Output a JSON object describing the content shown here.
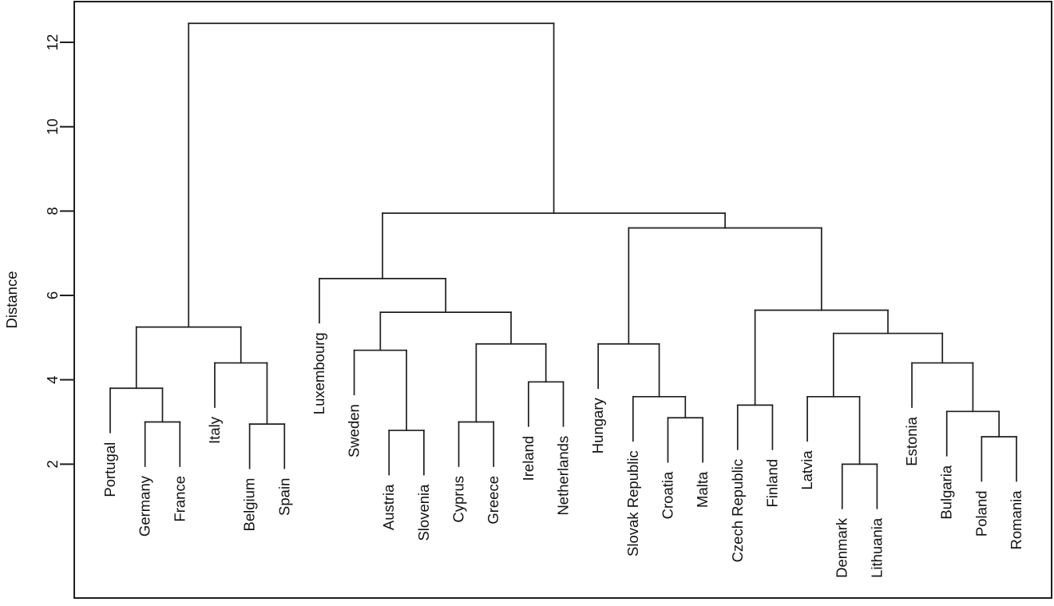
{
  "chart_data": {
    "type": "dendrogram",
    "title": "",
    "xlabel": "",
    "ylabel": "Distance",
    "y_axis": {
      "ticks": [
        2,
        4,
        6,
        8,
        10,
        12
      ],
      "tick_labels": [
        "2",
        "4",
        "6",
        "8",
        "10",
        "12"
      ],
      "orientation": "labels rotated 90 degrees, reading bottom to top"
    },
    "ylim": [
      -1.17,
      12.97
    ],
    "grid": false,
    "legend": "none",
    "leaf_label_rotation": "vertical, reading bottom to top, hanging below leaf stems",
    "hang": 1.05,
    "leaves": [
      "Portugal",
      "Germany",
      "France",
      "Italy",
      "Belgium",
      "Spain",
      "Luxembourg",
      "Sweden",
      "Austria",
      "Slovenia",
      "Cyprus",
      "Greece",
      "Ireland",
      "Netherlands",
      "Hungary",
      "Slovak Republic",
      "Croatia",
      "Malta",
      "Czech Republic",
      "Finland",
      "Latvia",
      "Denmark",
      "Lithuania",
      "Estonia",
      "Bulgaria",
      "Poland",
      "Romania"
    ],
    "merges_note": "R hclust style: negative index = leaf (1-based into leaves[]), positive = previous merge row (1-based). Third value = merge height (Distance).",
    "merges": [
      [
        -2,
        -3,
        3.0
      ],
      [
        -1,
        1,
        3.8
      ],
      [
        -5,
        -6,
        2.95
      ],
      [
        -4,
        3,
        4.4
      ],
      [
        2,
        4,
        5.25
      ],
      [
        -9,
        -10,
        2.8
      ],
      [
        -8,
        6,
        4.7
      ],
      [
        -11,
        -12,
        3.0
      ],
      [
        -13,
        -14,
        3.95
      ],
      [
        8,
        9,
        4.85
      ],
      [
        7,
        10,
        5.6
      ],
      [
        -7,
        11,
        6.4
      ],
      [
        -17,
        -18,
        3.1
      ],
      [
        -16,
        13,
        3.6
      ],
      [
        -15,
        14,
        4.85
      ],
      [
        -19,
        -20,
        3.4
      ],
      [
        -22,
        -23,
        2.0
      ],
      [
        -21,
        17,
        3.6
      ],
      [
        -26,
        -27,
        2.65
      ],
      [
        -25,
        19,
        3.25
      ],
      [
        -24,
        20,
        4.4
      ],
      [
        18,
        21,
        5.1
      ],
      [
        16,
        22,
        5.65
      ],
      [
        15,
        23,
        7.6
      ],
      [
        12,
        24,
        7.95
      ],
      [
        5,
        25,
        12.45
      ]
    ],
    "root_height": 12.45,
    "line_color": "#1f1f1f",
    "text_color": "#111111",
    "background_color": "#ffffff"
  }
}
